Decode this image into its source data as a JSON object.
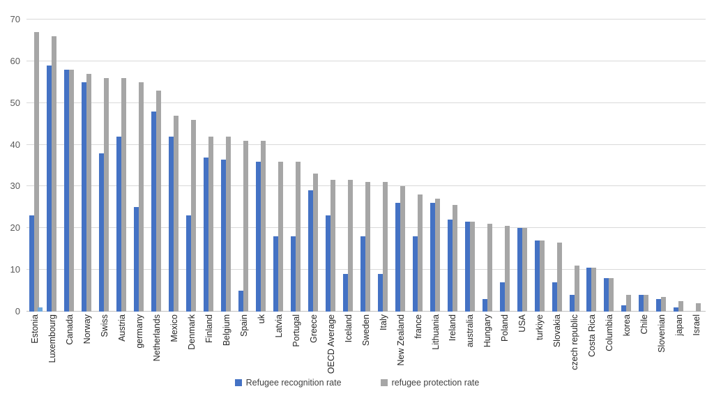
{
  "chart_data": {
    "type": "bar",
    "title": "",
    "xlabel": "",
    "ylabel": "",
    "ylim": [
      0,
      70
    ],
    "yticks": [
      0,
      10,
      20,
      30,
      40,
      50,
      60,
      70
    ],
    "grid": "horizontal",
    "legend_position": "bottom-center",
    "background": "#ffffff",
    "gridline_color": "#d9d9d9",
    "categories": [
      "Estonia",
      "Luxembourg",
      "Canada",
      "Norway",
      "Swiss",
      "Austria",
      "germany",
      "Netherlands",
      "Mexico",
      "Denmark",
      "Finland",
      "Belgium",
      "Spain",
      "uk",
      "Latvia",
      "Portugal",
      "Greece",
      "OECD Average",
      "Iceland",
      "Sweden",
      "Italy",
      "New Zealand",
      "france",
      "Lithuania",
      "Ireland",
      "australia",
      "Hungary",
      "Poland",
      "USA",
      "turkiye",
      "Slovakia",
      "czech republic",
      "Costa Rica",
      "Columbia",
      "korea",
      "Chile",
      "Slovenian",
      "japan",
      "Israel"
    ],
    "series": [
      {
        "name": "Refugee recognition rate",
        "color": "#4472C4",
        "values": [
          23,
          59,
          58,
          55,
          38,
          42,
          25,
          48,
          42,
          23,
          37,
          36.5,
          5,
          36,
          18,
          18,
          29,
          23,
          9,
          18,
          9,
          26,
          18,
          26,
          22,
          21.5,
          3,
          7,
          20,
          17,
          7,
          4,
          10.5,
          8,
          1.5,
          4,
          3,
          1,
          0
        ]
      },
      {
        "name": "refugee protection rate",
        "color": "#A6A6A6",
        "values": [
          67,
          66,
          58,
          57,
          56,
          56,
          55,
          53,
          47,
          46,
          42,
          42,
          41,
          41,
          36,
          36,
          33,
          31.5,
          31.5,
          31,
          31,
          30,
          28,
          27,
          25.5,
          21.5,
          21,
          20.5,
          20,
          17,
          16.5,
          11,
          10.5,
          8,
          4,
          4,
          3.5,
          2.5,
          2
        ]
      }
    ],
    "extra_bars": [
      {
        "category": "Estonia",
        "category_index": 0,
        "value": 1,
        "color": "#6FA8DC"
      }
    ]
  }
}
